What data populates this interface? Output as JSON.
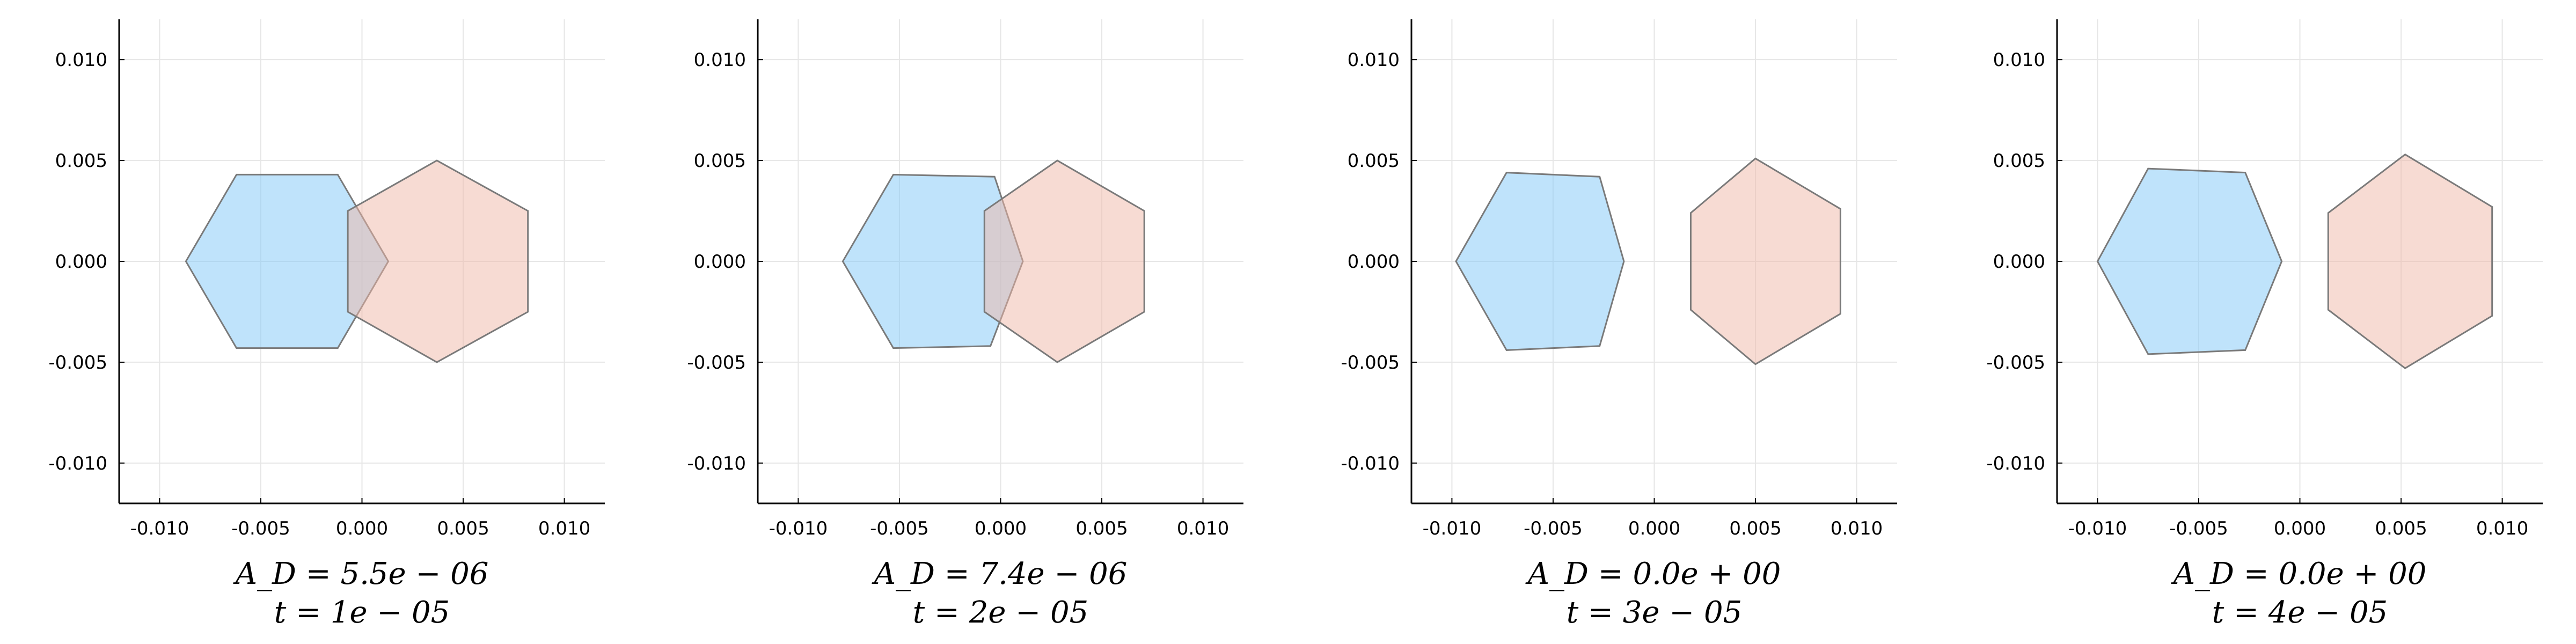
{
  "colors": {
    "shape_a": "#7fc8f8",
    "shape_b": "#f0b8a8",
    "edge": "#7a7a7a",
    "axis": "#000000",
    "grid": "#e6e6e6"
  },
  "chart_data": [
    {
      "type": "scatter",
      "xlim": [
        -0.012,
        0.012
      ],
      "ylim": [
        -0.012,
        0.012
      ],
      "xticks": [
        -0.01,
        -0.005,
        0.0,
        0.005,
        0.01
      ],
      "yticks": [
        -0.01,
        -0.005,
        0.0,
        0.005,
        0.01
      ],
      "xtick_labels": [
        "-0.010",
        "-0.005",
        "0.000",
        "0.005",
        "0.010"
      ],
      "ytick_labels": [
        "-0.010",
        "-0.005",
        "0.000",
        "0.005",
        "0.010"
      ],
      "grid": true,
      "caption_line1": "A_D = 5.5e − 06",
      "caption_line2": "t = 1e − 05",
      "series": [
        {
          "x": [
            -0.0087,
            -0.0062,
            -0.0012,
            0.0013,
            -0.0012,
            -0.0062
          ],
          "y": [
            0.0,
            0.0043,
            0.0043,
            0.0,
            -0.0043,
            -0.0043
          ]
        },
        {
          "x": [
            0.0037,
            0.0082,
            0.0082,
            0.0037,
            -0.0007,
            -0.0007
          ],
          "y": [
            0.005,
            0.0025,
            -0.0025,
            -0.005,
            -0.0025,
            0.0025
          ]
        }
      ]
    },
    {
      "type": "scatter",
      "xlim": [
        -0.012,
        0.012
      ],
      "ylim": [
        -0.012,
        0.012
      ],
      "xticks": [
        -0.01,
        -0.005,
        0.0,
        0.005,
        0.01
      ],
      "yticks": [
        -0.01,
        -0.005,
        0.0,
        0.005,
        0.01
      ],
      "xtick_labels": [
        "-0.010",
        "-0.005",
        "0.000",
        "0.005",
        "0.010"
      ],
      "ytick_labels": [
        "-0.010",
        "-0.005",
        "0.000",
        "0.005",
        "0.010"
      ],
      "grid": true,
      "caption_line1": "A_D = 7.4e − 06",
      "caption_line2": "t = 2e − 05",
      "series": [
        {
          "x": [
            -0.0078,
            -0.0053,
            -0.0003,
            0.0011,
            -0.0005,
            -0.0053
          ],
          "y": [
            0.0,
            0.0043,
            0.0042,
            0.0,
            -0.0042,
            -0.0043
          ]
        },
        {
          "x": [
            0.0028,
            0.0071,
            0.0071,
            0.0028,
            -0.0008,
            -0.0008
          ],
          "y": [
            0.005,
            0.0025,
            -0.0025,
            -0.005,
            -0.0025,
            0.0025
          ]
        }
      ]
    },
    {
      "type": "scatter",
      "xlim": [
        -0.012,
        0.012
      ],
      "ylim": [
        -0.012,
        0.012
      ],
      "xticks": [
        -0.01,
        -0.005,
        0.0,
        0.005,
        0.01
      ],
      "yticks": [
        -0.01,
        -0.005,
        0.0,
        0.005,
        0.01
      ],
      "xtick_labels": [
        "-0.010",
        "-0.005",
        "0.000",
        "0.005",
        "0.010"
      ],
      "ytick_labels": [
        "-0.010",
        "-0.005",
        "0.000",
        "0.005",
        "0.010"
      ],
      "grid": true,
      "caption_line1": "A_D = 0.0e + 00",
      "caption_line2": "t = 3e − 05",
      "series": [
        {
          "x": [
            -0.0098,
            -0.0073,
            -0.0027,
            -0.0015,
            -0.0027,
            -0.0073
          ],
          "y": [
            0.0,
            0.0044,
            0.0042,
            0.0,
            -0.0042,
            -0.0044
          ]
        },
        {
          "x": [
            0.005,
            0.0092,
            0.0092,
            0.005,
            0.0018,
            0.0018
          ],
          "y": [
            0.0051,
            0.0026,
            -0.0026,
            -0.0051,
            -0.0024,
            0.0024
          ]
        }
      ]
    },
    {
      "type": "scatter",
      "xlim": [
        -0.012,
        0.012
      ],
      "ylim": [
        -0.012,
        0.012
      ],
      "xticks": [
        -0.01,
        -0.005,
        0.0,
        0.005,
        0.01
      ],
      "yticks": [
        -0.01,
        -0.005,
        0.0,
        0.005,
        0.01
      ],
      "xtick_labels": [
        "-0.010",
        "-0.005",
        "0.000",
        "0.005",
        "0.010"
      ],
      "ytick_labels": [
        "-0.010",
        "-0.005",
        "0.000",
        "0.005",
        "0.010"
      ],
      "grid": true,
      "caption_line1": "A_D = 0.0e + 00",
      "caption_line2": "t = 4e − 05",
      "series": [
        {
          "x": [
            -0.01,
            -0.0075,
            -0.0027,
            -0.0009,
            -0.0027,
            -0.0075
          ],
          "y": [
            0.0,
            0.0046,
            0.0044,
            0.0,
            -0.0044,
            -0.0046
          ]
        },
        {
          "x": [
            0.0052,
            0.0095,
            0.0095,
            0.0052,
            0.0014,
            0.0014
          ],
          "y": [
            0.0053,
            0.0027,
            -0.0027,
            -0.0053,
            -0.0024,
            0.0024
          ]
        }
      ]
    }
  ]
}
